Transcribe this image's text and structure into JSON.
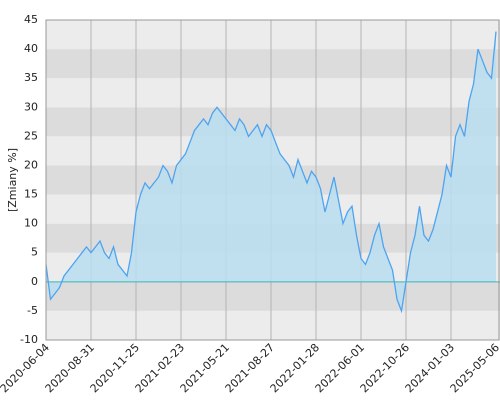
{
  "chart_data": {
    "type": "area",
    "y_label": "[Zmiany %]",
    "categories": [
      "2020-06-04",
      null,
      null,
      null,
      null,
      null,
      null,
      null,
      null,
      null,
      "2020-08-31",
      null,
      null,
      null,
      null,
      null,
      null,
      null,
      null,
      null,
      "2020-11-25",
      null,
      null,
      null,
      null,
      null,
      null,
      null,
      null,
      null,
      "2021-02-23",
      null,
      null,
      null,
      null,
      null,
      null,
      null,
      null,
      null,
      "2021-05-21",
      null,
      null,
      null,
      null,
      null,
      null,
      null,
      null,
      null,
      "2021-08-27",
      null,
      null,
      null,
      null,
      null,
      null,
      null,
      null,
      null,
      "2022-01-28",
      null,
      null,
      null,
      null,
      null,
      null,
      null,
      null,
      null,
      "2022-06-01",
      null,
      null,
      null,
      null,
      null,
      null,
      null,
      null,
      null,
      "2022-10-26",
      null,
      null,
      null,
      null,
      null,
      null,
      null,
      null,
      null,
      "2024-01-03",
      null,
      null,
      null,
      null,
      null,
      null,
      null,
      null,
      null,
      "2025-05-06"
    ],
    "values": [
      3,
      -3,
      -2,
      -1,
      1,
      2,
      3,
      4,
      5,
      6,
      5,
      6,
      7,
      5,
      4,
      6,
      3,
      2,
      1,
      5,
      12,
      15,
      17,
      16,
      17,
      18,
      20,
      19,
      17,
      20,
      21,
      22,
      24,
      26,
      27,
      28,
      27,
      29,
      30,
      29,
      28,
      27,
      26,
      28,
      27,
      25,
      26,
      27,
      25,
      27,
      26,
      24,
      22,
      21,
      20,
      18,
      21,
      19,
      17,
      19,
      18,
      16,
      12,
      15,
      18,
      14,
      10,
      12,
      13,
      8,
      4,
      3,
      5,
      8,
      10,
      6,
      4,
      2,
      -3,
      -5,
      0,
      5,
      8,
      13,
      8,
      7,
      9,
      12,
      15,
      20,
      18,
      25,
      27,
      25,
      31,
      34,
      40,
      38,
      36,
      35,
      43
    ],
    "color": "#4ea3f0",
    "fill": "#b9def0",
    "ylim": [
      -10,
      45
    ],
    "yticks": [
      -10,
      -5,
      0,
      5,
      10,
      15,
      20,
      25,
      30,
      35,
      40,
      45
    ],
    "grid": true
  }
}
